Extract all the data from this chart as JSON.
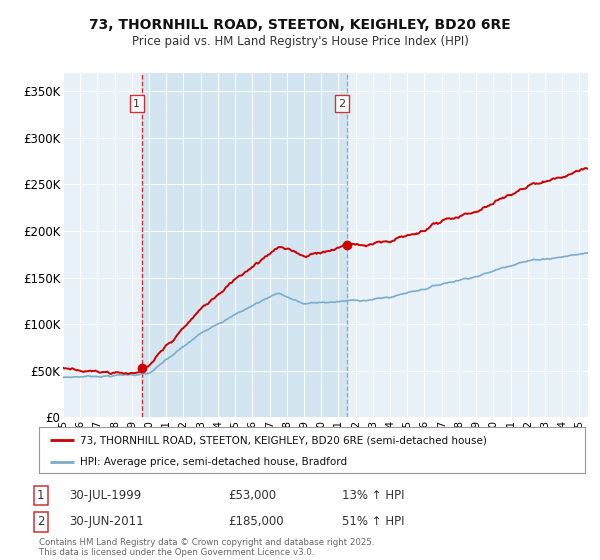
{
  "title_line1": "73, THORNHILL ROAD, STEETON, KEIGHLEY, BD20 6RE",
  "title_line2": "Price paid vs. HM Land Registry's House Price Index (HPI)",
  "background_color": "#ffffff",
  "plot_bg_color": "#e8f0f8",
  "legend_label_red": "73, THORNHILL ROAD, STEETON, KEIGHLEY, BD20 6RE (semi-detached house)",
  "legend_label_blue": "HPI: Average price, semi-detached house, Bradford",
  "footer": "Contains HM Land Registry data © Crown copyright and database right 2025.\nThis data is licensed under the Open Government Licence v3.0.",
  "annotation1_label": "1",
  "annotation1_date": "30-JUL-1999",
  "annotation1_price": "£53,000",
  "annotation1_hpi": "13% ↑ HPI",
  "annotation2_label": "2",
  "annotation2_date": "30-JUN-2011",
  "annotation2_price": "£185,000",
  "annotation2_hpi": "51% ↑ HPI",
  "yticks": [
    0,
    50000,
    100000,
    150000,
    200000,
    250000,
    300000,
    350000
  ],
  "ytick_labels": [
    "£0",
    "£50K",
    "£100K",
    "£150K",
    "£200K",
    "£250K",
    "£300K",
    "£350K"
  ],
  "ymax": 370000,
  "red_color": "#cc0000",
  "blue_color": "#7aaccc",
  "shade_color": "#d0e4f0",
  "sale1_year": 1999.58,
  "sale1_price": 53000,
  "sale2_year": 2011.5,
  "sale2_price": 185000,
  "xmin": 1995,
  "xmax": 2025.5,
  "xtick_years": [
    1995,
    1996,
    1997,
    1998,
    1999,
    2000,
    2001,
    2002,
    2003,
    2004,
    2005,
    2006,
    2007,
    2008,
    2009,
    2010,
    2011,
    2012,
    2013,
    2014,
    2015,
    2016,
    2017,
    2018,
    2019,
    2020,
    2021,
    2022,
    2023,
    2024,
    2025
  ],
  "xtick_labels": [
    "'95",
    "'96",
    "'97",
    "'98",
    "'99",
    "'00",
    "'01",
    "'02",
    "'03",
    "'04",
    "'05",
    "'06",
    "'07",
    "'08",
    "'09",
    "'10",
    "'11",
    "'12",
    "'13",
    "'14",
    "'15",
    "'16",
    "'17",
    "'18",
    "'19",
    "'20",
    "'21",
    "'22",
    "'23",
    "'24",
    "'25"
  ]
}
